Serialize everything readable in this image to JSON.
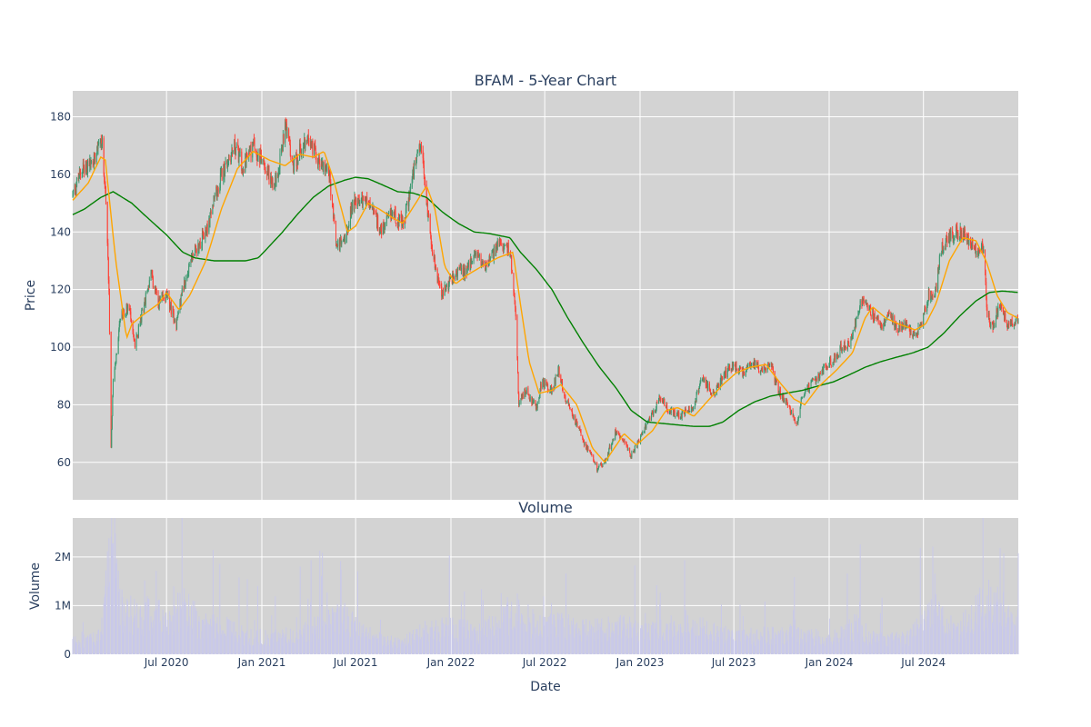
{
  "chart_data": [
    {
      "type": "candlestick",
      "title": "BFAM - 5-Year Chart",
      "ylabel": "Price",
      "ylim": [
        47,
        189
      ],
      "yticks": [
        "60",
        "80",
        "100",
        "120",
        "140",
        "160",
        "180"
      ],
      "colors": {
        "increasing": "#3d9970",
        "decreasing": "#ff4136",
        "ma_short": "#ffa500",
        "ma_long": "#008000",
        "background": "#d3d3d3"
      },
      "x_range": [
        "2020-01-02",
        "2024-12-31"
      ],
      "price_keypoints": [
        [
          "2020-01-02",
          153
        ],
        [
          "2020-01-20",
          162
        ],
        [
          "2020-02-10",
          164
        ],
        [
          "2020-02-20",
          172
        ],
        [
          "2020-02-28",
          170
        ],
        [
          "2020-03-05",
          155
        ],
        [
          "2020-03-12",
          120
        ],
        [
          "2020-03-16",
          66
        ],
        [
          "2020-03-20",
          88
        ],
        [
          "2020-03-25",
          95
        ],
        [
          "2020-04-03",
          110
        ],
        [
          "2020-04-20",
          115
        ],
        [
          "2020-05-01",
          100
        ],
        [
          "2020-05-15",
          112
        ],
        [
          "2020-06-01",
          125
        ],
        [
          "2020-06-15",
          115
        ],
        [
          "2020-07-01",
          118
        ],
        [
          "2020-07-20",
          108
        ],
        [
          "2020-08-01",
          120
        ],
        [
          "2020-08-15",
          130
        ],
        [
          "2020-09-15",
          140
        ],
        [
          "2020-10-15",
          160
        ],
        [
          "2020-11-10",
          170
        ],
        [
          "2020-11-25",
          163
        ],
        [
          "2020-12-15",
          170
        ],
        [
          "2021-01-10",
          162
        ],
        [
          "2021-01-25",
          155
        ],
        [
          "2021-02-10",
          170
        ],
        [
          "2021-02-15",
          180
        ],
        [
          "2021-03-01",
          162
        ],
        [
          "2021-03-15",
          168
        ],
        [
          "2021-04-01",
          172
        ],
        [
          "2021-04-20",
          165
        ],
        [
          "2021-05-10",
          162
        ],
        [
          "2021-05-25",
          135
        ],
        [
          "2021-06-10",
          138
        ],
        [
          "2021-06-25",
          150
        ],
        [
          "2021-07-15",
          152
        ],
        [
          "2021-08-01",
          148
        ],
        [
          "2021-08-20",
          140
        ],
        [
          "2021-09-10",
          147
        ],
        [
          "2021-10-01",
          142
        ],
        [
          "2021-10-20",
          160
        ],
        [
          "2021-11-05",
          170
        ],
        [
          "2021-11-15",
          150
        ],
        [
          "2021-12-01",
          128
        ],
        [
          "2021-12-15",
          118
        ],
        [
          "2022-01-05",
          125
        ],
        [
          "2022-02-01",
          127
        ],
        [
          "2022-02-20",
          133
        ],
        [
          "2022-03-10",
          128
        ],
        [
          "2022-04-01",
          135
        ],
        [
          "2022-04-25",
          134
        ],
        [
          "2022-05-05",
          115
        ],
        [
          "2022-05-12",
          80
        ],
        [
          "2022-05-25",
          85
        ],
        [
          "2022-06-15",
          79
        ],
        [
          "2022-06-25",
          88
        ],
        [
          "2022-07-15",
          85
        ],
        [
          "2022-07-28",
          92
        ],
        [
          "2022-08-10",
          82
        ],
        [
          "2022-09-01",
          73
        ],
        [
          "2022-09-20",
          65
        ],
        [
          "2022-10-10",
          58
        ],
        [
          "2022-10-25",
          60
        ],
        [
          "2022-11-15",
          71
        ],
        [
          "2022-12-01",
          68
        ],
        [
          "2022-12-15",
          62
        ],
        [
          "2023-01-05",
          70
        ],
        [
          "2023-01-25",
          77
        ],
        [
          "2023-02-10",
          83
        ],
        [
          "2023-02-25",
          78
        ],
        [
          "2023-03-20",
          76
        ],
        [
          "2023-04-15",
          80
        ],
        [
          "2023-05-01",
          90
        ],
        [
          "2023-05-20",
          83
        ],
        [
          "2023-06-10",
          90
        ],
        [
          "2023-07-01",
          94
        ],
        [
          "2023-07-20",
          91
        ],
        [
          "2023-08-05",
          95
        ],
        [
          "2023-08-25",
          92
        ],
        [
          "2023-09-10",
          94
        ],
        [
          "2023-09-25",
          85
        ],
        [
          "2023-10-15",
          80
        ],
        [
          "2023-10-30",
          73
        ],
        [
          "2023-11-10",
          83
        ],
        [
          "2023-12-01",
          88
        ],
        [
          "2023-12-20",
          92
        ],
        [
          "2024-01-10",
          96
        ],
        [
          "2024-01-25",
          100
        ],
        [
          "2024-02-10",
          101
        ],
        [
          "2024-02-20",
          108
        ],
        [
          "2024-03-05",
          117
        ],
        [
          "2024-03-20",
          113
        ],
        [
          "2024-04-10",
          107
        ],
        [
          "2024-04-25",
          113
        ],
        [
          "2024-05-10",
          106
        ],
        [
          "2024-05-25",
          108
        ],
        [
          "2024-06-10",
          104
        ],
        [
          "2024-06-25",
          107
        ],
        [
          "2024-07-10",
          118
        ],
        [
          "2024-07-25",
          120
        ],
        [
          "2024-08-05",
          135
        ],
        [
          "2024-08-20",
          138
        ],
        [
          "2024-09-05",
          140
        ],
        [
          "2024-09-25",
          138
        ],
        [
          "2024-10-15",
          133
        ],
        [
          "2024-10-25",
          135
        ],
        [
          "2024-11-01",
          112
        ],
        [
          "2024-11-10",
          106
        ],
        [
          "2024-11-25",
          115
        ],
        [
          "2024-12-10",
          108
        ],
        [
          "2024-12-31",
          110
        ]
      ],
      "ma_short_keypoints": [
        [
          "2020-01-02",
          151
        ],
        [
          "2020-02-01",
          157
        ],
        [
          "2020-02-25",
          166
        ],
        [
          "2020-03-05",
          165
        ],
        [
          "2020-03-25",
          130
        ],
        [
          "2020-04-15",
          103
        ],
        [
          "2020-04-25",
          108
        ],
        [
          "2020-05-15",
          111
        ],
        [
          "2020-06-15",
          115
        ],
        [
          "2020-07-01",
          119
        ],
        [
          "2020-07-25",
          113
        ],
        [
          "2020-08-15",
          118
        ],
        [
          "2020-09-15",
          130
        ],
        [
          "2020-10-15",
          148
        ],
        [
          "2020-11-15",
          162
        ],
        [
          "2020-12-15",
          168
        ],
        [
          "2021-01-15",
          165
        ],
        [
          "2021-02-15",
          163
        ],
        [
          "2021-03-15",
          167
        ],
        [
          "2021-04-10",
          166
        ],
        [
          "2021-05-01",
          168
        ],
        [
          "2021-05-20",
          158
        ],
        [
          "2021-06-15",
          140
        ],
        [
          "2021-07-01",
          142
        ],
        [
          "2021-07-25",
          150
        ],
        [
          "2021-08-15",
          148
        ],
        [
          "2021-09-10",
          145
        ],
        [
          "2021-09-30",
          143
        ],
        [
          "2021-10-25",
          150
        ],
        [
          "2021-11-15",
          156
        ],
        [
          "2021-12-01",
          148
        ],
        [
          "2021-12-20",
          128
        ],
        [
          "2022-01-10",
          122
        ],
        [
          "2022-02-01",
          125
        ],
        [
          "2022-03-01",
          128
        ],
        [
          "2022-04-01",
          131
        ],
        [
          "2022-05-01",
          133
        ],
        [
          "2022-05-15",
          115
        ],
        [
          "2022-06-01",
          95
        ],
        [
          "2022-06-20",
          84
        ],
        [
          "2022-07-15",
          85
        ],
        [
          "2022-08-01",
          87
        ],
        [
          "2022-09-01",
          80
        ],
        [
          "2022-10-01",
          65
        ],
        [
          "2022-10-25",
          60
        ],
        [
          "2022-11-20",
          67
        ],
        [
          "2022-12-01",
          70
        ],
        [
          "2022-12-25",
          66
        ],
        [
          "2023-01-25",
          71
        ],
        [
          "2023-02-20",
          78
        ],
        [
          "2023-03-15",
          79
        ],
        [
          "2023-04-15",
          76
        ],
        [
          "2023-05-15",
          82
        ],
        [
          "2023-06-10",
          87
        ],
        [
          "2023-07-05",
          91
        ],
        [
          "2023-08-01",
          93
        ],
        [
          "2023-09-01",
          94
        ],
        [
          "2023-10-01",
          87
        ],
        [
          "2023-10-25",
          82
        ],
        [
          "2023-11-15",
          80
        ],
        [
          "2023-12-10",
          86
        ],
        [
          "2024-01-15",
          92
        ],
        [
          "2024-02-15",
          98
        ],
        [
          "2024-03-10",
          110
        ],
        [
          "2024-03-25",
          114
        ],
        [
          "2024-04-20",
          110
        ],
        [
          "2024-05-15",
          108
        ],
        [
          "2024-06-15",
          106
        ],
        [
          "2024-07-05",
          108
        ],
        [
          "2024-07-25",
          115
        ],
        [
          "2024-08-20",
          130
        ],
        [
          "2024-09-15",
          138
        ],
        [
          "2024-10-10",
          137
        ],
        [
          "2024-10-30",
          130
        ],
        [
          "2024-11-20",
          118
        ],
        [
          "2024-12-10",
          112
        ],
        [
          "2024-12-31",
          110
        ]
      ],
      "ma_long_keypoints": [
        [
          "2020-01-02",
          146
        ],
        [
          "2020-01-25",
          148
        ],
        [
          "2020-02-25",
          152
        ],
        [
          "2020-03-20",
          154
        ],
        [
          "2020-04-25",
          150
        ],
        [
          "2020-05-25",
          145
        ],
        [
          "2020-07-01",
          139
        ],
        [
          "2020-08-01",
          133
        ],
        [
          "2020-08-25",
          131
        ],
        [
          "2020-10-01",
          130
        ],
        [
          "2020-12-01",
          130
        ],
        [
          "2020-12-25",
          131
        ],
        [
          "2021-01-10",
          134
        ],
        [
          "2021-02-10",
          140
        ],
        [
          "2021-03-10",
          146
        ],
        [
          "2021-04-10",
          152
        ],
        [
          "2021-05-10",
          156
        ],
        [
          "2021-06-10",
          158
        ],
        [
          "2021-07-01",
          159
        ],
        [
          "2021-07-25",
          158.5
        ],
        [
          "2021-08-20",
          156.5
        ],
        [
          "2021-09-20",
          154
        ],
        [
          "2021-10-20",
          153.5
        ],
        [
          "2021-11-15",
          152
        ],
        [
          "2021-12-15",
          147
        ],
        [
          "2022-01-15",
          143
        ],
        [
          "2022-02-15",
          140
        ],
        [
          "2022-03-15",
          139.5
        ],
        [
          "2022-04-25",
          138
        ],
        [
          "2022-05-15",
          133
        ],
        [
          "2022-06-15",
          127
        ],
        [
          "2022-07-15",
          120
        ],
        [
          "2022-08-15",
          110
        ],
        [
          "2022-09-15",
          101
        ],
        [
          "2022-10-15",
          93
        ],
        [
          "2022-11-15",
          86
        ],
        [
          "2022-12-15",
          78
        ],
        [
          "2023-01-15",
          74
        ],
        [
          "2023-02-15",
          73.5
        ],
        [
          "2023-03-15",
          73
        ],
        [
          "2023-04-15",
          72.5
        ],
        [
          "2023-05-15",
          72.5
        ],
        [
          "2023-06-10",
          74
        ],
        [
          "2023-07-10",
          78
        ],
        [
          "2023-08-10",
          81
        ],
        [
          "2023-09-10",
          83
        ],
        [
          "2023-10-10",
          84
        ],
        [
          "2023-11-10",
          85
        ],
        [
          "2023-12-10",
          86.5
        ],
        [
          "2024-01-10",
          88
        ],
        [
          "2024-02-10",
          90.5
        ],
        [
          "2024-03-10",
          93
        ],
        [
          "2024-04-10",
          95
        ],
        [
          "2024-05-10",
          96.5
        ],
        [
          "2024-06-10",
          98
        ],
        [
          "2024-07-10",
          100
        ],
        [
          "2024-08-10",
          105
        ],
        [
          "2024-09-10",
          111
        ],
        [
          "2024-10-10",
          116
        ],
        [
          "2024-11-05",
          119
        ],
        [
          "2024-12-01",
          119.5
        ],
        [
          "2024-12-31",
          119
        ]
      ]
    },
    {
      "type": "bar",
      "title": "Volume",
      "ylabel": "Volume",
      "xlabel": "Date",
      "ylim": [
        0,
        2.8
      ],
      "yticks": [
        "0",
        "1M",
        "2M"
      ],
      "xticks": [
        {
          "date": "2020-07-01",
          "label": "Jul 2020"
        },
        {
          "date": "2021-01-01",
          "label": "Jan 2021"
        },
        {
          "date": "2021-07-01",
          "label": "Jul 2021"
        },
        {
          "date": "2022-01-01",
          "label": "Jan 2022"
        },
        {
          "date": "2022-07-01",
          "label": "Jul 2022"
        },
        {
          "date": "2023-01-01",
          "label": "Jan 2023"
        },
        {
          "date": "2023-07-01",
          "label": "Jul 2023"
        },
        {
          "date": "2024-01-01",
          "label": "Jan 2024"
        },
        {
          "date": "2024-07-01",
          "label": "Jul 2024"
        }
      ],
      "bar_color": "#c9c9e9",
      "volume_keypoints_millions": [
        [
          "2020-01-02",
          0.28
        ],
        [
          "2020-02-15",
          0.32
        ],
        [
          "2020-03-01",
          0.6
        ],
        [
          "2020-03-16",
          2.6
        ],
        [
          "2020-04-01",
          1.0
        ],
        [
          "2020-05-01",
          0.8
        ],
        [
          "2020-06-01",
          0.9
        ],
        [
          "2020-07-01",
          0.7
        ],
        [
          "2020-08-01",
          1.0
        ],
        [
          "2020-09-01",
          0.7
        ],
        [
          "2020-10-15",
          0.6
        ],
        [
          "2020-12-01",
          0.4
        ],
        [
          "2021-01-15",
          0.35
        ],
        [
          "2021-03-01",
          0.4
        ],
        [
          "2021-05-01",
          0.6
        ],
        [
          "2021-06-01",
          0.8
        ],
        [
          "2021-08-01",
          0.35
        ],
        [
          "2021-10-01",
          0.25
        ],
        [
          "2021-11-15",
          0.5
        ],
        [
          "2022-01-01",
          0.55
        ],
        [
          "2022-03-01",
          0.45
        ],
        [
          "2022-05-10",
          0.9
        ],
        [
          "2022-06-15",
          0.6
        ],
        [
          "2022-08-01",
          0.6
        ],
        [
          "2022-10-01",
          0.5
        ],
        [
          "2022-11-15",
          0.6
        ],
        [
          "2023-01-15",
          0.45
        ],
        [
          "2023-03-01",
          0.55
        ],
        [
          "2023-05-01",
          0.6
        ],
        [
          "2023-07-01",
          0.35
        ],
        [
          "2023-09-01",
          0.4
        ],
        [
          "2023-11-01",
          0.45
        ],
        [
          "2024-01-01",
          0.3
        ],
        [
          "2024-02-20",
          0.6
        ],
        [
          "2024-04-01",
          0.3
        ],
        [
          "2024-06-01",
          0.35
        ],
        [
          "2024-07-25",
          0.9
        ],
        [
          "2024-09-01",
          0.45
        ],
        [
          "2024-11-01",
          1.1
        ],
        [
          "2024-12-31",
          0.7
        ]
      ]
    }
  ]
}
